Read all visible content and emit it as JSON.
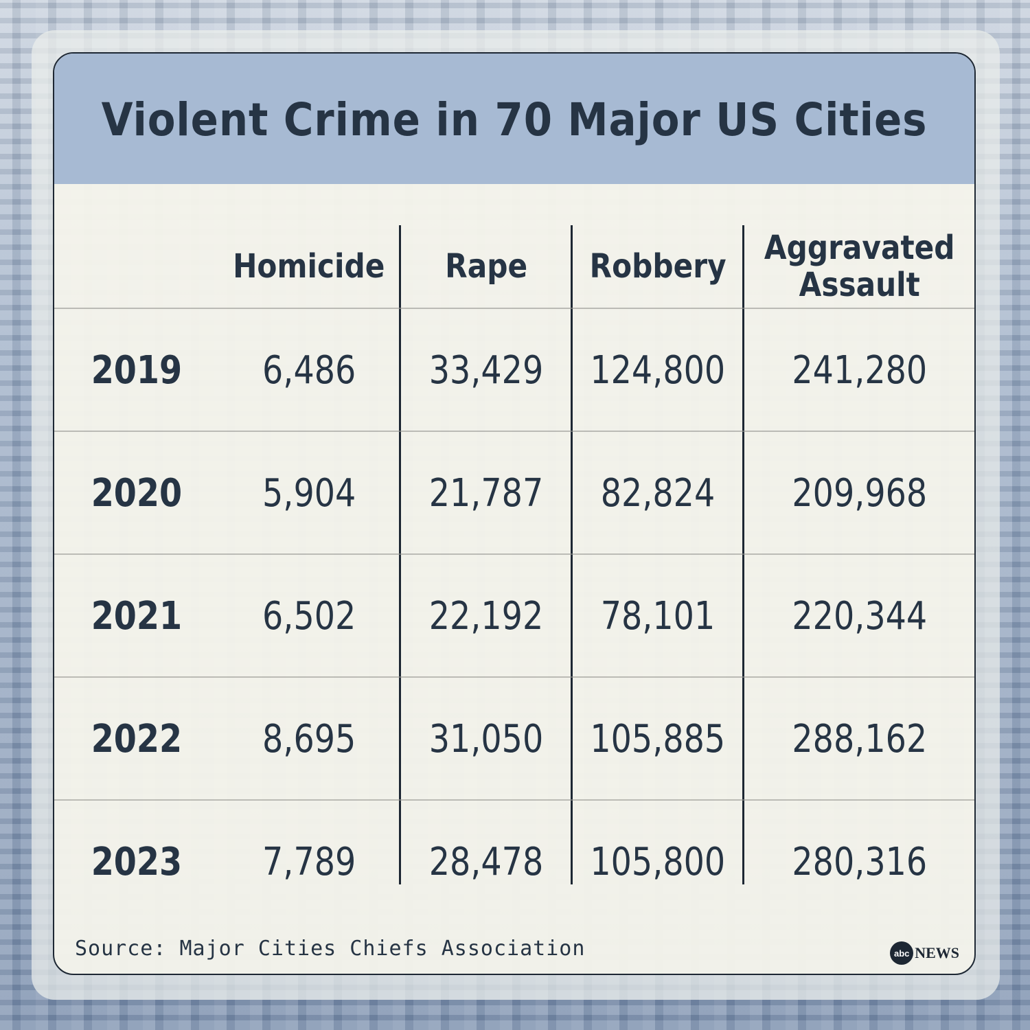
{
  "title": "Violent Crime in 70 Major US Cities",
  "source": "Source: Major Cities Chiefs Association",
  "logo": {
    "mark": "abc",
    "text": "NEWS"
  },
  "colors": {
    "header": "#a7bad3",
    "text": "#263444"
  },
  "chart_data": {
    "type": "table",
    "title": "Violent Crime in 70 Major US Cities",
    "columns": [
      "Homicide",
      "Rape",
      "Robbery",
      "Aggravated Assault"
    ],
    "column_header_lines": [
      [
        "Homicide"
      ],
      [
        "Rape"
      ],
      [
        "Robbery"
      ],
      [
        "Aggravated",
        "Assault"
      ]
    ],
    "rows": [
      {
        "year": "2019",
        "values": [
          "6,486",
          "33,429",
          "124,800",
          "241,280"
        ]
      },
      {
        "year": "2020",
        "values": [
          "5,904",
          "21,787",
          "82,824",
          "209,968"
        ]
      },
      {
        "year": "2021",
        "values": [
          "6,502",
          "22,192",
          "78,101",
          "220,344"
        ]
      },
      {
        "year": "2022",
        "values": [
          "8,695",
          "31,050",
          "105,885",
          "288,162"
        ]
      },
      {
        "year": "2023",
        "values": [
          "7,789",
          "28,478",
          "105,800",
          "280,316"
        ]
      }
    ]
  }
}
